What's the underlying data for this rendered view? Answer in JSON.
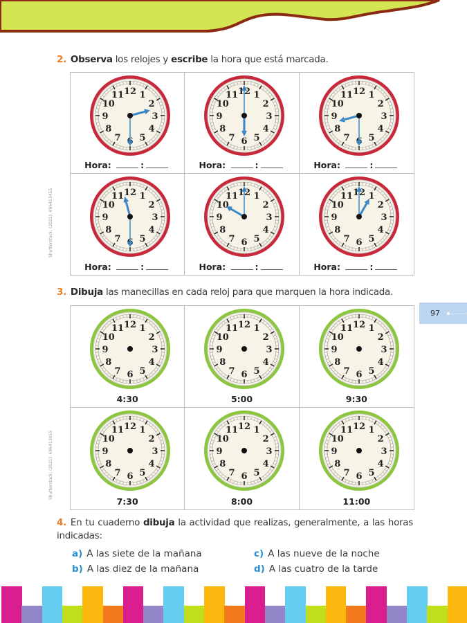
{
  "colors": {
    "header_green": "#d3e553",
    "header_border": "#8a2a10",
    "accent_orange": "#ee7d22",
    "letter_blue": "#2a8fd0",
    "clock_red": "#c8283a",
    "clock_green": "#8cc63f",
    "hand_blue": "#3a86c8",
    "stripes": [
      "#d91f8f",
      "#9186c8",
      "#66ccf0",
      "#c0de1a",
      "#fbb80e",
      "#f37a1d"
    ]
  },
  "q2": {
    "number": "2.",
    "verb1": "Observa",
    "text1": " los relojes y ",
    "verb2": "escribe",
    "text2": " la hora que está marcada.",
    "hora_label": "Hora:",
    "separator": ":",
    "clocks": [
      {
        "hour": 2,
        "minute": 30
      },
      {
        "hour": 6,
        "minute": 0
      },
      {
        "hour": 8,
        "minute": 30
      },
      {
        "hour": 11,
        "minute": 30
      },
      {
        "hour": 10,
        "minute": 0
      },
      {
        "hour": 1,
        "minute": 0
      }
    ]
  },
  "q3": {
    "number": "3.",
    "verb": "Dibuja",
    "text": " las manecillas en cada reloj para que marquen la hora indicada.",
    "times": [
      "4:30",
      "5:00",
      "9:30",
      "7:30",
      "8:00",
      "11:00"
    ]
  },
  "q4": {
    "number": "4.",
    "text1": "En tu cuaderno ",
    "verb": "dibuja",
    "text2": " la actividad que realizas, generalmente, a las horas indicadas:",
    "items": [
      {
        "letter": "a)",
        "text": "A las siete de la mañana"
      },
      {
        "letter": "b)",
        "text": "A las diez de la mañana"
      },
      {
        "letter": "c)",
        "text": "A las nueve de la noche"
      },
      {
        "letter": "d)",
        "text": "A las cuatro de la tarde"
      }
    ]
  },
  "credit": "Shutterstock, (2021). 696413455",
  "page_number": "97"
}
